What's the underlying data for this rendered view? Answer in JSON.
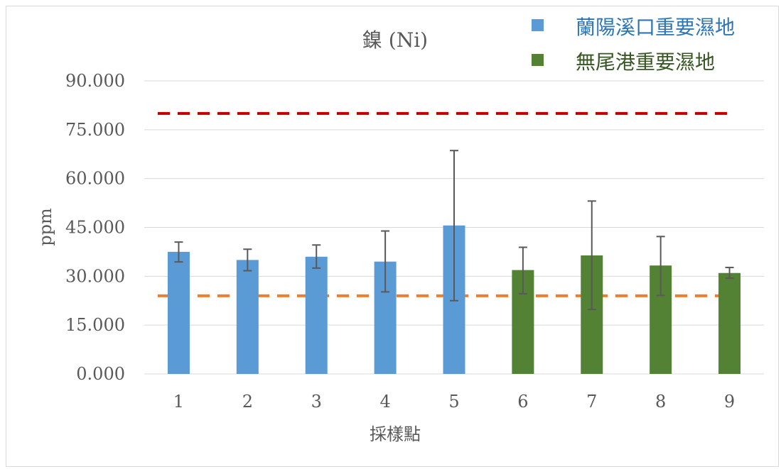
{
  "chart_data": {
    "type": "bar",
    "title": "鎳 (Ni)",
    "xlabel": "採樣點",
    "ylabel": "ppm",
    "categories": [
      "1",
      "2",
      "3",
      "4",
      "5",
      "6",
      "7",
      "8",
      "9"
    ],
    "yticks": [
      "0.000",
      "15.000",
      "30.000",
      "45.000",
      "60.000",
      "75.000",
      "90.000"
    ],
    "ylim": [
      0,
      90
    ],
    "grid": true,
    "legend_position": "top-right",
    "series": [
      {
        "name": "蘭陽溪口重要濕地",
        "color": "#5b9bd5",
        "points": [
          {
            "category": "1",
            "value": 37.5,
            "err_low": 34.4,
            "err_high": 40.5
          },
          {
            "category": "2",
            "value": 35.0,
            "err_low": 31.7,
            "err_high": 38.3
          },
          {
            "category": "3",
            "value": 36.0,
            "err_low": 32.5,
            "err_high": 39.6
          },
          {
            "category": "4",
            "value": 34.5,
            "err_low": 25.2,
            "err_high": 43.9
          },
          {
            "category": "5",
            "value": 45.6,
            "err_low": 22.5,
            "err_high": 68.6
          }
        ]
      },
      {
        "name": "無尾港重要濕地",
        "color": "#548235",
        "points": [
          {
            "category": "6",
            "value": 31.9,
            "err_low": 24.6,
            "err_high": 38.9
          },
          {
            "category": "7",
            "value": 36.4,
            "err_low": 19.8,
            "err_high": 53.1
          },
          {
            "category": "8",
            "value": 33.3,
            "err_low": 24.1,
            "err_high": 42.2
          },
          {
            "category": "9",
            "value": 31.0,
            "err_low": 29.4,
            "err_high": 32.7
          }
        ]
      }
    ],
    "reference_lines": [
      {
        "value": 80,
        "color": "#c00000",
        "style": "dashed"
      },
      {
        "value": 24,
        "color": "#ed7d31",
        "style": "dashed"
      }
    ]
  }
}
